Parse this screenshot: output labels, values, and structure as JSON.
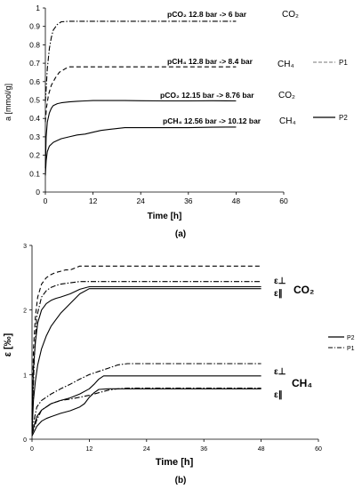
{
  "chart_data": [
    {
      "panel_label": "(a)",
      "type": "line",
      "xlabel": "Time [h]",
      "ylabel": "a [mmol/g]",
      "xlim": [
        0,
        60
      ],
      "ylim": [
        0,
        1
      ],
      "xticks": [
        "0",
        "12",
        "24",
        "36",
        "48",
        "60"
      ],
      "yticks": [
        "0",
        "0.1",
        "0.2",
        "0.3",
        "0.4",
        "0.5",
        "0.6",
        "0.7",
        "0.8",
        "0.9",
        "1"
      ],
      "grid": false,
      "legend": [
        {
          "label": "P1",
          "style": "dashed"
        },
        {
          "label": "P2",
          "style": "solid"
        }
      ],
      "series": [
        {
          "gas": "CO₂",
          "pressure": "pCO₂ 12.8 bar -> 6 bar",
          "style": "dashdot",
          "x": [
            0,
            0.2,
            0.5,
            1,
            1.5,
            2,
            3,
            4,
            6,
            12,
            24,
            36,
            48
          ],
          "y": [
            0.49,
            0.56,
            0.67,
            0.78,
            0.84,
            0.88,
            0.91,
            0.925,
            0.928,
            0.928,
            0.928,
            0.928,
            0.928
          ]
        },
        {
          "gas": "CH₄",
          "pressure": "pCH₄ 12.8 bar -> 8.4 bar",
          "style": "dashed",
          "x": [
            0,
            0.3,
            0.8,
            1.5,
            2.5,
            3.5,
            5,
            6,
            8,
            12,
            24,
            36,
            48
          ],
          "y": [
            0.38,
            0.46,
            0.53,
            0.58,
            0.62,
            0.65,
            0.67,
            0.68,
            0.68,
            0.68,
            0.68,
            0.68,
            0.68
          ]
        },
        {
          "gas": "CO₂",
          "pressure": "pCO₂ 12.15 bar -> 8.76 bar",
          "style": "solid",
          "x": [
            0,
            0.2,
            0.5,
            1,
            1.5,
            2,
            3,
            4,
            6,
            8,
            10,
            12,
            16,
            20,
            24,
            30,
            36,
            42,
            48
          ],
          "y": [
            0.13,
            0.3,
            0.38,
            0.43,
            0.455,
            0.47,
            0.48,
            0.485,
            0.49,
            0.493,
            0.495,
            0.497,
            0.497,
            0.497,
            0.496,
            0.495,
            0.495,
            0.496,
            0.495
          ]
        },
        {
          "gas": "CH₄",
          "pressure": "pCH₄ 12.56 bar -> 10.12 bar",
          "style": "solid",
          "x": [
            0,
            0.2,
            0.5,
            1,
            2,
            3,
            4,
            6,
            8,
            10,
            12,
            14,
            16,
            18,
            20,
            24,
            30,
            36,
            42,
            48
          ],
          "y": [
            0.09,
            0.17,
            0.22,
            0.25,
            0.27,
            0.28,
            0.29,
            0.3,
            0.31,
            0.315,
            0.325,
            0.335,
            0.34,
            0.345,
            0.35,
            0.35,
            0.35,
            0.35,
            0.352,
            0.353
          ]
        }
      ],
      "labels": {
        "co2_p1": "pCO₂ 12.8 bar -> 6 bar",
        "co2_p1_gas": "CO₂",
        "ch4_p1": "pCH₄ 12.8 bar -> 8.4 bar",
        "ch4_p1_gas": "CH₄",
        "co2_p2": "pCO₂ 12.15 bar -> 8.76 bar",
        "co2_p2_gas": "CO₂",
        "ch4_p2": "pCH₄ 12.56 bar -> 10.12 bar",
        "ch4_p2_gas": "CH₄"
      }
    },
    {
      "panel_label": "(b)",
      "type": "line",
      "xlabel": "Time [h]",
      "ylabel": "ε [‰]",
      "xlim": [
        0,
        60
      ],
      "ylim": [
        0,
        3
      ],
      "xticks": [
        "0",
        "12",
        "24",
        "36",
        "48",
        "60"
      ],
      "yticks": [
        "0",
        "1",
        "2",
        "3"
      ],
      "grid": false,
      "legend": [
        {
          "label": "P2",
          "style": "solid"
        },
        {
          "label": "P1",
          "style": "dashdot"
        }
      ],
      "series": [
        {
          "gas": "CO₂",
          "component": "ε⊥",
          "group": "P1",
          "style": "dashed",
          "x": [
            0,
            0.3,
            0.7,
            1.2,
            2,
            3,
            4,
            5,
            6,
            7,
            8,
            10,
            12,
            24,
            36,
            48
          ],
          "y": [
            0.3,
            1.4,
            1.9,
            2.2,
            2.4,
            2.5,
            2.55,
            2.58,
            2.6,
            2.62,
            2.62,
            2.68,
            2.68,
            2.68,
            2.68,
            2.68
          ]
        },
        {
          "gas": "CO₂",
          "component": "ε∥",
          "group": "P1",
          "style": "dashdot",
          "x": [
            0,
            0.5,
            1,
            2,
            3,
            4,
            5,
            6,
            8,
            10,
            12,
            24,
            36,
            48
          ],
          "y": [
            0.2,
            1.3,
            1.9,
            2.2,
            2.3,
            2.35,
            2.38,
            2.4,
            2.42,
            2.44,
            2.44,
            2.44,
            2.44,
            2.44
          ]
        },
        {
          "gas": "CO₂",
          "component": "ε⊥",
          "group": "P2",
          "style": "solid",
          "x": [
            0,
            0.3,
            0.7,
            1.2,
            2,
            3,
            4,
            5,
            6,
            8,
            10,
            12,
            24,
            36,
            48
          ],
          "y": [
            0.3,
            1.1,
            1.5,
            1.8,
            2.0,
            2.1,
            2.15,
            2.18,
            2.2,
            2.25,
            2.32,
            2.36,
            2.36,
            2.36,
            2.36
          ]
        },
        {
          "gas": "CO₂",
          "component": "ε∥",
          "group": "P2",
          "style": "solid",
          "x": [
            0,
            0.3,
            0.7,
            1.2,
            2,
            3,
            4,
            5,
            6,
            8,
            10,
            12,
            24,
            36,
            48
          ],
          "y": [
            0.1,
            0.6,
            0.9,
            1.15,
            1.4,
            1.6,
            1.75,
            1.85,
            1.95,
            2.1,
            2.25,
            2.33,
            2.33,
            2.33,
            2.33
          ]
        },
        {
          "gas": "CH₄",
          "component": "ε⊥",
          "group": "P1",
          "style": "dashdot",
          "x": [
            0,
            1,
            2,
            3,
            4,
            6,
            8,
            10,
            12,
            14,
            16,
            18,
            20,
            24,
            36,
            48
          ],
          "y": [
            0.15,
            0.5,
            0.6,
            0.65,
            0.7,
            0.78,
            0.85,
            0.93,
            1.0,
            1.05,
            1.1,
            1.15,
            1.17,
            1.17,
            1.17,
            1.17
          ]
        },
        {
          "gas": "CH₄",
          "component": "ε∥",
          "group": "P1",
          "style": "dashdot",
          "x": [
            0,
            1,
            2,
            3,
            4,
            6,
            8,
            10,
            12,
            14,
            16,
            18,
            20,
            24,
            36,
            48
          ],
          "y": [
            0.08,
            0.3,
            0.45,
            0.5,
            0.55,
            0.6,
            0.62,
            0.65,
            0.68,
            0.72,
            0.76,
            0.78,
            0.79,
            0.79,
            0.79,
            0.79
          ]
        },
        {
          "gas": "CH₄",
          "component": "ε⊥",
          "group": "P2",
          "style": "solid",
          "x": [
            0,
            1,
            2,
            3,
            4,
            6,
            8,
            10,
            12,
            13,
            14,
            15,
            16,
            24,
            36,
            48
          ],
          "y": [
            0.1,
            0.35,
            0.45,
            0.5,
            0.55,
            0.6,
            0.64,
            0.7,
            0.78,
            0.85,
            0.93,
            0.98,
            0.98,
            0.98,
            0.98,
            0.98
          ]
        },
        {
          "gas": "CH₄",
          "component": "ε∥",
          "group": "P2",
          "style": "solid",
          "x": [
            0,
            1,
            2,
            3,
            4,
            6,
            8,
            10,
            11,
            12,
            13,
            14,
            16,
            24,
            36,
            48
          ],
          "y": [
            0.05,
            0.2,
            0.28,
            0.32,
            0.35,
            0.4,
            0.44,
            0.5,
            0.55,
            0.65,
            0.72,
            0.77,
            0.78,
            0.78,
            0.78,
            0.78
          ]
        }
      ],
      "labels": {
        "eps_perp": "ε⊥",
        "eps_par": "ε∥",
        "co2_gas": "CO₂",
        "ch4_gas": "CH₄"
      }
    }
  ]
}
